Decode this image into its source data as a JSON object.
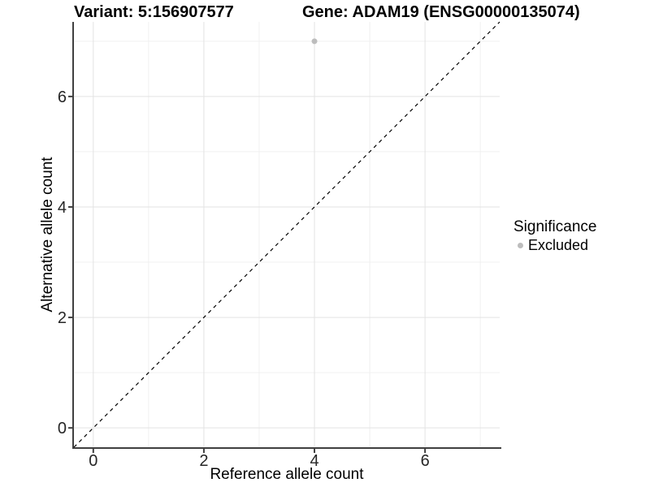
{
  "title": {
    "left": "Variant: 5:156907577",
    "right": "Gene: ADAM19 (ENSG00000135074)"
  },
  "axes": {
    "x_label": "Reference allele count",
    "y_label": "Alternative allele count"
  },
  "legend": {
    "title": "Significance",
    "items": [
      {
        "label": "Excluded",
        "color": "#bdbdbd"
      }
    ]
  },
  "colors": {
    "background": "#ffffff",
    "grid_major": "#e3e3e3",
    "grid_minor": "#f0f0f0",
    "axis_line": "#404040",
    "tick_text": "#262626",
    "identity_line": "#000000",
    "point": "#bdbdbd"
  },
  "chart_data": {
    "type": "scatter",
    "title": "Variant: 5:156907577   Gene: ADAM19 (ENSG00000135074)",
    "xlabel": "Reference allele count",
    "ylabel": "Alternative allele count",
    "xlim": [
      -0.35,
      7.35
    ],
    "ylim": [
      -0.35,
      7.35
    ],
    "x_ticks": [
      0,
      2,
      4,
      6
    ],
    "y_ticks": [
      0,
      2,
      4,
      6
    ],
    "x_minor_gridlines": [
      1,
      3,
      5,
      7
    ],
    "y_minor_gridlines": [
      1,
      3,
      5,
      7
    ],
    "grid": "on",
    "legend_position": "right",
    "identity_line": {
      "show": true,
      "style": "dashed",
      "slope": 1,
      "intercept": 0
    },
    "series": [
      {
        "name": "Excluded",
        "color": "#bdbdbd",
        "points": [
          {
            "x": 4,
            "y": 7
          }
        ]
      }
    ]
  }
}
